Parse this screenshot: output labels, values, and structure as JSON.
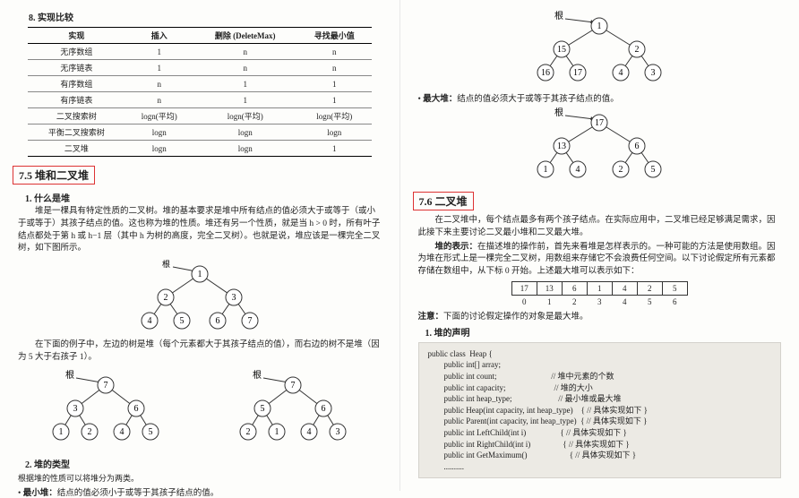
{
  "left": {
    "section8": "8. 实现比较",
    "table": {
      "headers": [
        "实现",
        "插入",
        "删除 (DeleteMax)",
        "寻找最小值"
      ],
      "rows": [
        [
          "无序数组",
          "1",
          "n",
          "n"
        ],
        [
          "无序链表",
          "1",
          "n",
          "n"
        ],
        [
          "有序数组",
          "n",
          "1",
          "1"
        ],
        [
          "有序链表",
          "n",
          "1",
          "1"
        ],
        [
          "二叉搜索树",
          "logn(平均)",
          "logn(平均)",
          "logn(平均)"
        ],
        [
          "平衡二叉搜索树",
          "logn",
          "logn",
          "logn"
        ],
        [
          "二叉堆",
          "logn",
          "logn",
          "1"
        ]
      ]
    },
    "heading75": "7.5   堆和二叉堆",
    "sub1": "1. 什么是堆",
    "p1": "堆是一棵具有特定性质的二叉树。堆的基本要求是堆中所有结点的值必须大于或等于（或小于或等于）其孩子结点的值。这也称为堆的性质。堆还有另一个性质，就是当 h > 0 时，所有叶子结点都处于第 h 或 h−1 层（其中 h 为树的高度，完全二叉树）。也就是说，堆应该是一棵完全二叉树，如下图所示。",
    "p2": "在下面的例子中，左边的树是堆（每个元素都大于其孩子结点的值），而右边的树不是堆（因为 5 大于右孩子 1）。",
    "sub2": "2. 堆的类型",
    "p3": "根据堆的性质可以将堆分为两类。",
    "minHeapLabel": "最小堆：",
    "minHeapText": "结点的值必须小于或等于其孩子结点的值。",
    "rootLabel": "根",
    "tree1": {
      "nodes": [
        [
          1
        ],
        [
          2,
          3
        ],
        [
          4,
          5,
          6,
          7
        ]
      ],
      "edges": [
        [
          0,
          1
        ],
        [
          0,
          2
        ],
        [
          1,
          3
        ],
        [
          1,
          4
        ],
        [
          2,
          5
        ],
        [
          2,
          6
        ]
      ]
    },
    "treeHeap": {
      "nodes": [
        [
          7
        ],
        [
          3,
          6
        ],
        [
          1,
          2,
          4,
          5
        ]
      ]
    },
    "treeNotHeap": {
      "nodes": [
        [
          7
        ],
        [
          5,
          6
        ],
        [
          2,
          1,
          4,
          3
        ]
      ]
    }
  },
  "right": {
    "rootLabel": "根",
    "treeTop": {
      "levels": [
        [
          1
        ],
        [
          15,
          2
        ],
        [
          16,
          17,
          4,
          3
        ]
      ]
    },
    "maxHeapLabel": "最大堆：",
    "maxHeapText": "结点的值必须大于或等于其孩子结点的值。",
    "treeMaxHeap": {
      "levels": [
        [
          17
        ],
        [
          13,
          6
        ],
        [
          1,
          4,
          2,
          5
        ]
      ]
    },
    "heading76": "7.6   二叉堆",
    "p1": "在二叉堆中，每个结点最多有两个孩子结点。在实际应用中，二叉堆已经足够满足需求，因此接下来主要讨论二叉最小堆和二叉最大堆。",
    "p2title": "堆的表示：",
    "p2": "在描述堆的操作前，首先来看堆是怎样表示的。一种可能的方法是使用数组。因为堆在形式上是一棵完全二叉树，用数组来存储它不会浪费任何空间。以下讨论假定所有元素都存储在数组中，从下标 0 开始。上述最大堆可以表示如下：",
    "array": {
      "cells": [
        "17",
        "13",
        "6",
        "1",
        "4",
        "2",
        "5"
      ],
      "indices": [
        "0",
        "1",
        "2",
        "3",
        "4",
        "5",
        "6"
      ]
    },
    "note": "注意：",
    "noteText": "下面的讨论假定操作的对象是最大堆。",
    "sub1": "1. 堆的声明",
    "code": [
      {
        "t": "public class  Heap {",
        "c": ""
      },
      {
        "t": "        public int[] array;",
        "c": ""
      },
      {
        "t": "        public int count;",
        "c": "// 堆中元素的个数"
      },
      {
        "t": "        public int capacity;",
        "c": "// 堆的大小"
      },
      {
        "t": "        public int heap_type;",
        "c": "// 最小堆或最大堆"
      },
      {
        "t": "        public Heap(int capacity, int heap_type)",
        "c": "{ // 具体实现如下 }"
      },
      {
        "t": "        public Parent(int capacity, int heap_type)",
        "c": "{ // 具体实现如下 }"
      },
      {
        "t": "        public int LeftChild(int i)",
        "c": "{ // 具体实现如下 }"
      },
      {
        "t": "        public int RightChild(int i)",
        "c": "{ // 具体实现如下 }"
      },
      {
        "t": "        public int GetMaximum()",
        "c": "{ // 具体实现如下 }"
      },
      {
        "t": "        ..........",
        "c": ""
      }
    ]
  },
  "style": {
    "node_r": 9,
    "stroke": "#333",
    "highlight_border": "#d33",
    "codebg": "#eceae4"
  }
}
